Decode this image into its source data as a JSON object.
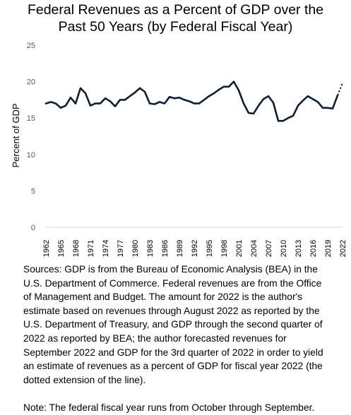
{
  "chart_data": {
    "type": "line",
    "title": [
      "Federal Revenues as a Percent of GDP over the",
      "Past 50 Years (by Federal Fiscal Year)"
    ],
    "xlabel": "",
    "ylabel": "Percent of GDP",
    "ylim": [
      0,
      25
    ],
    "yticks": [
      0,
      5,
      10,
      15,
      20,
      25
    ],
    "xlim": [
      1962,
      2022
    ],
    "xticks": [
      "1962",
      "1965",
      "1968",
      "1971",
      "1974",
      "1977",
      "1980",
      "1983",
      "1986",
      "1989",
      "1992",
      "1995",
      "1998",
      "2001",
      "2004",
      "2007",
      "2010",
      "2013",
      "2016",
      "2019",
      "2022"
    ],
    "grid": false,
    "line_color": "#0f1f33",
    "series": [
      {
        "x": [
          1962,
          1963,
          1964,
          1965,
          1966,
          1967,
          1968,
          1969,
          1970,
          1971,
          1972,
          1973,
          1974,
          1975,
          1976,
          1977,
          1978,
          1979,
          1980,
          1981,
          1982,
          1983,
          1984,
          1985,
          1986,
          1987,
          1988,
          1989,
          1990,
          1991,
          1992,
          1993,
          1994,
          1995,
          1996,
          1997,
          1998,
          1999,
          2000,
          2001,
          2002,
          2003,
          2004,
          2005,
          2006,
          2007,
          2008,
          2009,
          2010,
          2011,
          2012,
          2013,
          2014,
          2015,
          2016,
          2017,
          2018,
          2019,
          2020,
          2021
        ],
        "values": [
          17.0,
          17.2,
          17.0,
          16.4,
          16.7,
          17.8,
          17.0,
          19.1,
          18.4,
          16.7,
          17.0,
          17.0,
          17.7,
          17.3,
          16.6,
          17.5,
          17.5,
          18.0,
          18.5,
          19.1,
          18.6,
          17.0,
          16.9,
          17.2,
          17.0,
          17.9,
          17.7,
          17.8,
          17.5,
          17.3,
          17.0,
          17.0,
          17.5,
          18.0,
          18.4,
          18.9,
          19.3,
          19.3,
          20.0,
          18.8,
          17.0,
          15.7,
          15.6,
          16.7,
          17.6,
          18.0,
          17.1,
          14.6,
          14.6,
          15.0,
          15.3,
          16.7,
          17.4,
          18.0,
          17.6,
          17.2,
          16.4,
          16.4,
          16.3,
          18.1
        ],
        "style": "solid"
      },
      {
        "x": [
          2021,
          2022
        ],
        "values": [
          18.1,
          19.8
        ],
        "style": "dotted"
      }
    ]
  },
  "notes": [
    "Sources: GDP is from the Bureau of Economic Analysis (BEA) in the",
    "U.S. Department of Commerce. Federal revenues are from the Office",
    "of Management and Budget. The amount for 2022 is the author's",
    "estimate based on revenues through August 2022 as reported by the",
    "U.S. Department of Treasury, and GDP through the second quarter of",
    "2022 as reported by BEA; the author forecasted revenues for",
    "September 2022 and GDP for the 3rd quarter of 2022 in order to yield",
    "an estimate of revenues as a percent of GDP for fiscal year 2022 (the",
    "dotted extension of the line)."
  ],
  "footnote": "Note: The federal fiscal year runs from October through September."
}
